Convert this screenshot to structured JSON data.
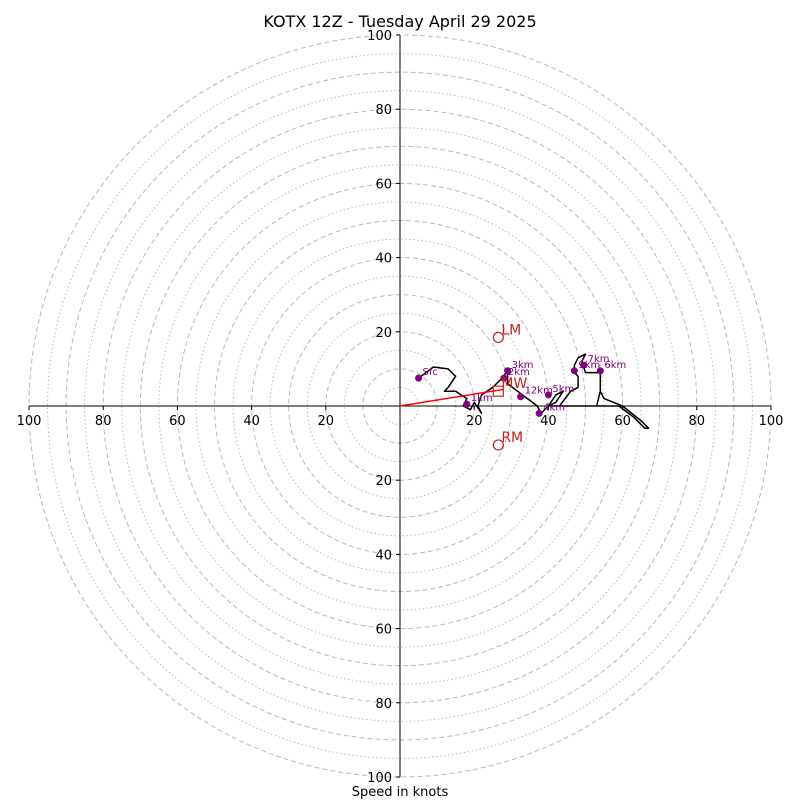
{
  "chart_data": {
    "type": "hodograph",
    "title": "KOTX 12Z - Tuesday April 29 2025",
    "xlabel": "Speed in knots",
    "units": "knots",
    "rings": {
      "major": [
        10,
        20,
        30,
        40,
        50,
        60,
        70,
        80,
        90,
        100
      ],
      "minor": [
        5,
        15,
        25,
        35,
        45,
        55,
        65,
        75,
        85,
        95
      ],
      "max": 100
    },
    "axis_ticks": [
      100,
      80,
      60,
      40,
      20,
      0,
      20,
      40,
      60,
      80,
      100
    ],
    "colors": {
      "ring": "#bbbbbb",
      "trace": "#000000",
      "points": "#800080",
      "vector": "#ff0000",
      "motion": "#cc1f1f"
    },
    "trace": [
      [
        5.0,
        7.5
      ],
      [
        9,
        10.5
      ],
      [
        13,
        10
      ],
      [
        15,
        8
      ],
      [
        13,
        5
      ],
      [
        12,
        4
      ],
      [
        15,
        4
      ],
      [
        18,
        2
      ],
      [
        17,
        0
      ],
      [
        19,
        -1
      ],
      [
        20,
        1
      ],
      [
        22,
        -2
      ],
      [
        21,
        0
      ],
      [
        22,
        3
      ],
      [
        25,
        5
      ],
      [
        28,
        8
      ],
      [
        29,
        10
      ],
      [
        29,
        6
      ],
      [
        33,
        3
      ],
      [
        37,
        0
      ],
      [
        38,
        -2
      ],
      [
        40,
        0
      ],
      [
        42,
        3
      ],
      [
        44,
        4
      ],
      [
        42,
        1
      ],
      [
        40,
        0
      ],
      [
        47,
        0
      ],
      [
        52,
        0
      ],
      [
        56,
        0
      ],
      [
        53,
        0
      ],
      [
        54,
        4
      ],
      [
        54,
        9
      ],
      [
        50,
        9
      ],
      [
        49,
        12
      ],
      [
        50,
        14
      ],
      [
        48,
        13
      ],
      [
        47,
        11
      ],
      [
        47,
        9
      ],
      [
        48,
        8
      ],
      [
        48,
        5
      ],
      [
        46,
        4
      ],
      [
        43,
        0
      ],
      [
        53,
        0
      ],
      [
        55,
        0
      ],
      [
        59,
        0
      ],
      [
        63,
        -3
      ],
      [
        66,
        -6
      ],
      [
        67,
        -6
      ],
      [
        65,
        -4
      ],
      [
        60,
        0
      ],
      [
        55,
        2
      ],
      [
        54,
        4
      ]
    ],
    "points": [
      {
        "label": "Sfc",
        "u": 5.0,
        "v": 7.5
      },
      {
        "label": "1km",
        "u": 18.0,
        "v": 0.5
      },
      {
        "label": "3km",
        "u": 29.0,
        "v": 9.5
      },
      {
        "label": "2km",
        "u": 28.0,
        "v": 7.5
      },
      {
        "label": "12km",
        "u": 32.5,
        "v": 2.5
      },
      {
        "label": "4km",
        "u": 37.5,
        "v": -2.0
      },
      {
        "label": "5km",
        "u": 40.0,
        "v": 3.0
      },
      {
        "label": "9km",
        "u": 47.0,
        "v": 9.5
      },
      {
        "label": "7km",
        "u": 49.5,
        "v": 11.0
      },
      {
        "label": "6km",
        "u": 54.0,
        "v": 9.5
      }
    ],
    "mean_wind_vector": {
      "u": 28.0,
      "v": 4.5
    },
    "storm_motion": [
      {
        "label": "LM",
        "u": 26.5,
        "v": 18.5,
        "marker": "circle"
      },
      {
        "label": "RM",
        "u": 26.5,
        "v": -10.5,
        "marker": "circle"
      },
      {
        "label": "MW",
        "u": 26.5,
        "v": 4.0,
        "marker": "square"
      }
    ]
  }
}
